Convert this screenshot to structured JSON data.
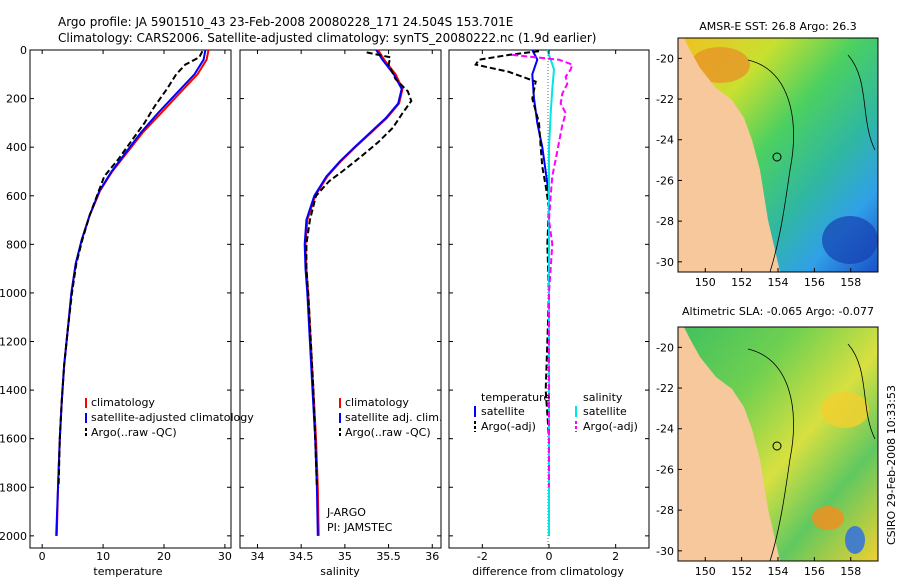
{
  "header": {
    "line1": "Argo profile: JA 5901510_43 23-Feb-2008 20080228_171 24.504S 153.701E",
    "line2": "Climatology: CARS2006. Satellite-adjusted climatology: synTS_20080222.nc (1.9d earlier)"
  },
  "side_label": "CSIRO 29-Feb-2008 10:33:53",
  "colors": {
    "climatology": "#ff0000",
    "satellite": "#0000ff",
    "argo": "#000000",
    "satellite_salinity": "#00e5e5",
    "argo_salinity": "#ff00ff"
  },
  "chart_data": [
    {
      "type": "line",
      "panel": "temperature",
      "xlabel": "temperature",
      "ylabel": "",
      "xlim": [
        -2,
        31
      ],
      "ylim": [
        2050,
        0
      ],
      "xticks": [
        "0",
        "10",
        "20",
        "30"
      ],
      "yticks": [
        "0",
        "200",
        "400",
        "600",
        "800",
        "1000",
        "1200",
        "1400",
        "1600",
        "1800",
        "2000"
      ],
      "legend": [
        "climatology",
        "satellite-adjusted climatology",
        "Argo(..raw -QC)"
      ],
      "series": [
        {
          "name": "climatology",
          "style": "solid",
          "points": [
            [
              27.3,
              0
            ],
            [
              27.0,
              40
            ],
            [
              25.5,
              100
            ],
            [
              22.5,
              180
            ],
            [
              19.5,
              260
            ],
            [
              16.5,
              340
            ],
            [
              14,
              420
            ],
            [
              11.5,
              500
            ],
            [
              9.5,
              580
            ],
            [
              7.8,
              680
            ],
            [
              6.5,
              780
            ],
            [
              5.5,
              880
            ],
            [
              4.8,
              1000
            ],
            [
              4.2,
              1150
            ],
            [
              3.6,
              1300
            ],
            [
              3.2,
              1450
            ],
            [
              2.9,
              1600
            ],
            [
              2.6,
              1800
            ],
            [
              2.4,
              2000
            ]
          ]
        },
        {
          "name": "satellite-adjusted climatology",
          "style": "solid",
          "points": [
            [
              26.8,
              0
            ],
            [
              26.5,
              40
            ],
            [
              25,
              100
            ],
            [
              22,
              180
            ],
            [
              19,
              260
            ],
            [
              16.2,
              340
            ],
            [
              13.8,
              420
            ],
            [
              11.4,
              500
            ],
            [
              9.4,
              580
            ],
            [
              7.8,
              680
            ],
            [
              6.5,
              780
            ],
            [
              5.5,
              880
            ],
            [
              4.8,
              1000
            ],
            [
              4.2,
              1150
            ],
            [
              3.6,
              1300
            ],
            [
              3.2,
              1450
            ],
            [
              2.9,
              1600
            ],
            [
              2.6,
              1800
            ],
            [
              2.3,
              2000
            ]
          ]
        },
        {
          "name": "Argo(..raw -QC)",
          "style": "dashed",
          "points": [
            [
              26.3,
              5
            ],
            [
              25.8,
              30
            ],
            [
              23.5,
              60
            ],
            [
              22,
              100
            ],
            [
              20.5,
              160
            ],
            [
              18.5,
              230
            ],
            [
              16.8,
              300
            ],
            [
              14.5,
              380
            ],
            [
              12.5,
              450
            ],
            [
              10.2,
              520
            ],
            [
              9.3,
              580
            ],
            [
              7.8,
              680
            ],
            [
              6.6,
              780
            ],
            [
              5.6,
              880
            ],
            [
              4.9,
              1000
            ],
            [
              4.2,
              1150
            ],
            [
              3.6,
              1300
            ],
            [
              3.2,
              1450
            ],
            [
              2.9,
              1600
            ],
            [
              2.7,
              1800
            ]
          ]
        }
      ]
    },
    {
      "type": "line",
      "panel": "salinity",
      "xlabel": "salinity",
      "ylabel": "",
      "xlim": [
        33.8,
        36.1
      ],
      "ylim": [
        2050,
        0
      ],
      "xticks": [
        "34",
        "34.5",
        "35",
        "35.5",
        "36"
      ],
      "legend": [
        "climatology",
        "satellite adj. clim.",
        "Argo(..raw -QC)"
      ],
      "annotation": [
        "J-ARGO",
        "PI: JAMSTEC"
      ],
      "series": [
        {
          "name": "climatology",
          "style": "solid",
          "points": [
            [
              35.38,
              0
            ],
            [
              35.45,
              40
            ],
            [
              35.58,
              100
            ],
            [
              35.66,
              160
            ],
            [
              35.62,
              220
            ],
            [
              35.48,
              280
            ],
            [
              35.3,
              340
            ],
            [
              35.12,
              400
            ],
            [
              34.95,
              460
            ],
            [
              34.8,
              520
            ],
            [
              34.66,
              600
            ],
            [
              34.57,
              700
            ],
            [
              34.55,
              800
            ],
            [
              34.56,
              900
            ],
            [
              34.58,
              1000
            ],
            [
              34.61,
              1200
            ],
            [
              34.64,
              1400
            ],
            [
              34.67,
              1600
            ],
            [
              34.69,
              1800
            ],
            [
              34.7,
              2000
            ]
          ]
        },
        {
          "name": "satellite adj. clim.",
          "style": "solid",
          "points": [
            [
              35.36,
              0
            ],
            [
              35.43,
              40
            ],
            [
              35.56,
              100
            ],
            [
              35.65,
              160
            ],
            [
              35.61,
              220
            ],
            [
              35.47,
              280
            ],
            [
              35.29,
              340
            ],
            [
              35.11,
              400
            ],
            [
              34.94,
              460
            ],
            [
              34.79,
              520
            ],
            [
              34.65,
              600
            ],
            [
              34.56,
              700
            ],
            [
              34.54,
              800
            ],
            [
              34.55,
              900
            ],
            [
              34.57,
              1000
            ],
            [
              34.6,
              1200
            ],
            [
              34.63,
              1400
            ],
            [
              34.66,
              1600
            ],
            [
              34.68,
              1800
            ],
            [
              34.69,
              2000
            ]
          ]
        },
        {
          "name": "Argo(..raw -QC)",
          "style": "dashed",
          "points": [
            [
              35.25,
              10
            ],
            [
              35.52,
              30
            ],
            [
              35.5,
              60
            ],
            [
              35.58,
              120
            ],
            [
              35.72,
              170
            ],
            [
              35.76,
              210
            ],
            [
              35.66,
              260
            ],
            [
              35.55,
              320
            ],
            [
              35.38,
              380
            ],
            [
              35.18,
              440
            ],
            [
              34.97,
              500
            ],
            [
              34.82,
              540
            ],
            [
              34.67,
              600
            ],
            [
              34.6,
              700
            ],
            [
              34.56,
              800
            ],
            [
              34.56,
              900
            ],
            [
              34.58,
              1000
            ],
            [
              34.61,
              1200
            ],
            [
              34.64,
              1400
            ],
            [
              34.66,
              1600
            ],
            [
              34.68,
              1800
            ]
          ]
        }
      ]
    },
    {
      "type": "line",
      "panel": "difference",
      "xlabel": "difference from climatology",
      "ylabel": "",
      "xlim": [
        -3,
        3
      ],
      "ylim": [
        2050,
        0
      ],
      "xticks": [
        "-2",
        "0",
        "2"
      ],
      "legend_headers": [
        "temperature",
        "salinity"
      ],
      "legend": [
        "satellite",
        "Argo(-adj)",
        "satellite",
        "Argo(-adj)"
      ],
      "series": [
        {
          "name": "temperature satellite",
          "style": "solid",
          "points": [
            [
              -0.5,
              0
            ],
            [
              -0.35,
              40
            ],
            [
              -0.5,
              100
            ],
            [
              -0.45,
              200
            ],
            [
              -0.35,
              300
            ],
            [
              -0.2,
              400
            ],
            [
              -0.1,
              500
            ],
            [
              0,
              600
            ],
            [
              0,
              800
            ],
            [
              0,
              1000
            ],
            [
              0,
              1500
            ],
            [
              0,
              2000
            ]
          ]
        },
        {
          "name": "temperature Argo(-adj)",
          "style": "dashed",
          "points": [
            [
              -0.3,
              5
            ],
            [
              -1.2,
              20
            ],
            [
              -2.1,
              40
            ],
            [
              -2.2,
              60
            ],
            [
              -1.2,
              90
            ],
            [
              -0.4,
              130
            ],
            [
              -0.5,
              200
            ],
            [
              -0.3,
              300
            ],
            [
              -0.25,
              400
            ],
            [
              -0.2,
              480
            ],
            [
              -0.1,
              560
            ],
            [
              0,
              650
            ],
            [
              -0.05,
              800
            ],
            [
              0,
              1000
            ],
            [
              -0.1,
              1400
            ],
            [
              0,
              1600
            ],
            [
              0,
              1800
            ]
          ]
        },
        {
          "name": "salinity satellite",
          "style": "solid",
          "points": [
            [
              -0.05,
              0
            ],
            [
              0.05,
              40
            ],
            [
              0.15,
              80
            ],
            [
              0.1,
              160
            ],
            [
              0.05,
              260
            ],
            [
              0,
              400
            ],
            [
              0,
              600
            ],
            [
              0,
              1000
            ],
            [
              0,
              1500
            ],
            [
              0,
              2000
            ]
          ]
        },
        {
          "name": "salinity Argo(-adj)",
          "style": "dashed",
          "points": [
            [
              -1.1,
              20
            ],
            [
              0.3,
              40
            ],
            [
              0.7,
              60
            ],
            [
              0.65,
              80
            ],
            [
              0.5,
              110
            ],
            [
              0.55,
              140
            ],
            [
              0.4,
              180
            ],
            [
              0.35,
              220
            ],
            [
              0.5,
              260
            ],
            [
              0.4,
              310
            ],
            [
              0.3,
              380
            ],
            [
              0.2,
              450
            ],
            [
              0.1,
              520
            ],
            [
              0.05,
              600
            ],
            [
              0,
              700
            ],
            [
              0.1,
              800
            ],
            [
              0,
              1000
            ],
            [
              0,
              1200
            ],
            [
              0,
              1600
            ],
            [
              0,
              1800
            ]
          ]
        }
      ]
    },
    {
      "type": "heatmap",
      "panel": "sst-map",
      "title": "AMSR-E SST: 26.8 Argo: 26.3",
      "xlim": [
        148.5,
        159.5
      ],
      "ylim": [
        -30.5,
        -19
      ],
      "xticks": [
        "150",
        "152",
        "154",
        "156",
        "158"
      ],
      "yticks": [
        "-20",
        "-22",
        "-24",
        "-26",
        "-28",
        "-30"
      ],
      "float_position": [
        153.701,
        -24.504
      ]
    },
    {
      "type": "heatmap",
      "panel": "sla-map",
      "title": "Altimetric SLA: -0.065 Argo: -0.077",
      "xlim": [
        148.5,
        159.5
      ],
      "ylim": [
        -30.5,
        -19
      ],
      "xticks": [
        "150",
        "152",
        "154",
        "156",
        "158"
      ],
      "yticks": [
        "-20",
        "-22",
        "-24",
        "-26",
        "-28",
        "-30"
      ],
      "float_position": [
        153.701,
        -24.504
      ]
    }
  ]
}
